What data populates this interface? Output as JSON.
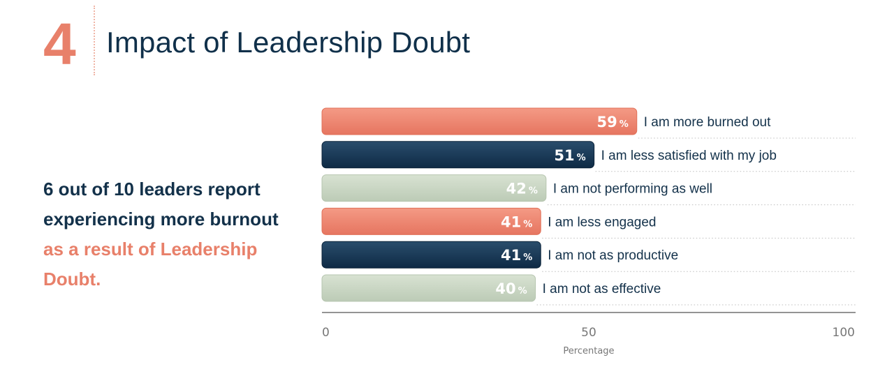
{
  "header": {
    "number": "4",
    "title": "Impact of Leadership Doubt"
  },
  "headline": {
    "text_main": "6 out of 10 leaders report experiencing more burnout ",
    "text_accent": "as a result of Leadership Doubt."
  },
  "chart_data": {
    "type": "bar",
    "orientation": "horizontal",
    "title": "",
    "xlabel": "Percentage",
    "ylabel": "",
    "xlim": [
      0,
      100
    ],
    "x_ticks": [
      "0",
      "50",
      "100"
    ],
    "value_unit": "%",
    "grid": false,
    "legend": "none",
    "categories": [
      "I am more burned out",
      "I am less satisfied with my job",
      "I am not performing as well",
      "I am less engaged",
      "I am not as productive",
      "I am not as effective"
    ],
    "values": [
      59,
      51,
      42,
      41,
      41,
      40
    ],
    "bar_colors": [
      "#e8806a",
      "#133352",
      "#c5d3bf",
      "#e8806a",
      "#133352",
      "#c5d3bf"
    ]
  }
}
